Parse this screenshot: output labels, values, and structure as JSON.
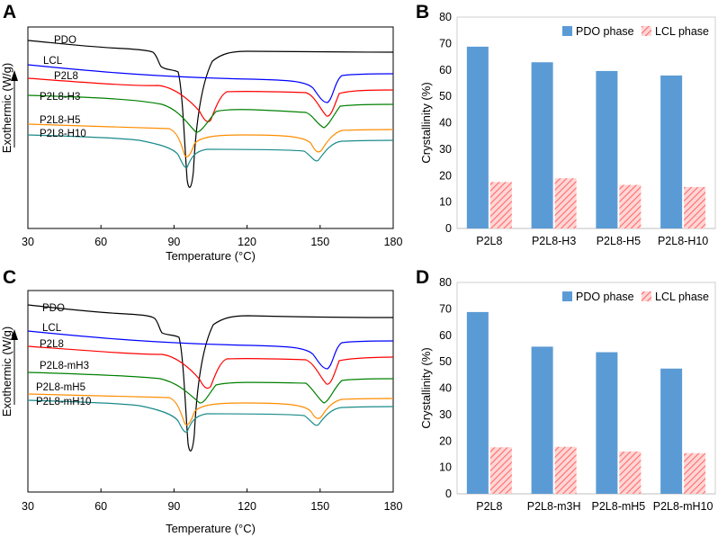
{
  "panel_labels": [
    "A",
    "B",
    "C",
    "D"
  ],
  "chart_data": [
    {
      "id": "A",
      "type": "line",
      "xlabel": "Temperature (°C)",
      "ylabel": "Exothermic (W/g)",
      "xlim": [
        30,
        180
      ],
      "xticks": [
        "30",
        "60",
        "90",
        "120",
        "150",
        "180"
      ],
      "grid": false,
      "series": [
        {
          "name": "PDO",
          "color": "#000000"
        },
        {
          "name": "LCL",
          "color": "#0000ff"
        },
        {
          "name": "P2L8",
          "color": "#ff0000"
        },
        {
          "name": "P2L8-H3",
          "color": "#008000"
        },
        {
          "name": "P2L8-H5",
          "color": "#ff8c00"
        },
        {
          "name": "P2L8-H10",
          "color": "#1a8a8a"
        }
      ]
    },
    {
      "id": "B",
      "type": "bar",
      "title": "",
      "xlabel": "",
      "ylabel": "Crystallinity (%)",
      "ylim": [
        0,
        80
      ],
      "yticks": [
        "0",
        "10",
        "20",
        "30",
        "40",
        "50",
        "60",
        "70",
        "80"
      ],
      "categories": [
        "P2L8",
        "P2L8-H3",
        "P2L8-H5",
        "P2L8-H10"
      ],
      "legend_position": "top-right",
      "series": [
        {
          "name": "PDO phase",
          "color": "#5b9bd5",
          "values": [
            68.8,
            62.9,
            59.6,
            57.9
          ]
        },
        {
          "name": "LCL phase",
          "color": "#ff7f7f",
          "values": [
            17.6,
            19.0,
            16.5,
            15.7
          ]
        }
      ]
    },
    {
      "id": "C",
      "type": "line",
      "xlabel": "Temperature (°C)",
      "ylabel": "Exothermic (W/g)",
      "xlim": [
        30,
        180
      ],
      "xticks": [
        "30",
        "60",
        "90",
        "120",
        "150",
        "180"
      ],
      "grid": false,
      "series": [
        {
          "name": "PDO",
          "color": "#000000"
        },
        {
          "name": "LCL",
          "color": "#0000ff"
        },
        {
          "name": "P2L8",
          "color": "#ff0000"
        },
        {
          "name": "P2L8-mH3",
          "color": "#008000"
        },
        {
          "name": "P2L8-mH5",
          "color": "#ff8c00"
        },
        {
          "name": "P2L8-mH10",
          "color": "#1a8a8a"
        }
      ]
    },
    {
      "id": "D",
      "type": "bar",
      "title": "",
      "xlabel": "",
      "ylabel": "Crystallinity (%)",
      "ylim": [
        0,
        80
      ],
      "yticks": [
        "0",
        "10",
        "20",
        "30",
        "40",
        "50",
        "60",
        "70",
        "80"
      ],
      "categories": [
        "P2L8",
        "P2L8-m3H",
        "P2L8-mH5",
        "P2L8-mH10"
      ],
      "legend_position": "top-right",
      "series": [
        {
          "name": "PDO phase",
          "color": "#5b9bd5",
          "values": [
            68.8,
            55.7,
            53.6,
            47.4
          ]
        },
        {
          "name": "LCL phase",
          "color": "#ff7f7f",
          "values": [
            17.6,
            17.8,
            16.0,
            15.4
          ]
        }
      ]
    }
  ]
}
